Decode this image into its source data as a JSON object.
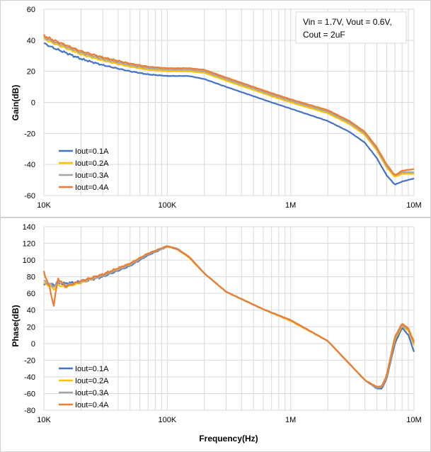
{
  "chart_data": [
    {
      "type": "line",
      "x_scale": "log",
      "ylabel": "Gain(dB)",
      "xlabel": "",
      "xlim": [
        10000,
        10000000
      ],
      "ylim": [
        -60,
        60
      ],
      "y_ticks": [
        60,
        40,
        20,
        0,
        -20,
        -40,
        -60
      ],
      "x_ticks": [
        {
          "value": 10000,
          "label": "10K"
        },
        {
          "value": 100000,
          "label": "100K"
        },
        {
          "value": 1000000,
          "label": "1M"
        },
        {
          "value": 10000000,
          "label": "10M"
        }
      ],
      "grid": true,
      "legend_position": "bottom-left",
      "annotation": {
        "line1": "Vin = 1.7V, Vout = 0.6V,",
        "line2": "Cout = 2uF"
      },
      "x": [
        10000,
        12000,
        15000,
        20000,
        30000,
        50000,
        70000,
        100000,
        150000,
        200000,
        300000,
        500000,
        700000,
        1000000,
        2000000,
        3000000,
        4000000,
        5000000,
        6000000,
        7000000,
        8000000,
        10000000
      ],
      "series": [
        {
          "name": "Iout=0.1A",
          "color": "#4472C4",
          "values": [
            38,
            35,
            32,
            28,
            24,
            20,
            18,
            17,
            17,
            15,
            10,
            4,
            0,
            -4,
            -12,
            -19,
            -26,
            -36,
            -47,
            -53,
            -51,
            -49
          ]
        },
        {
          "name": "Iout=0.2A",
          "color": "#FFC000",
          "values": [
            41,
            38,
            35,
            31,
            27,
            23,
            21,
            20,
            20,
            19,
            14,
            8,
            4,
            0,
            -7,
            -14,
            -21,
            -31,
            -42,
            -48,
            -46,
            -46
          ]
        },
        {
          "name": "Iout=0.3A",
          "color": "#A5A5A5",
          "values": [
            42,
            39,
            36,
            32,
            28,
            24,
            22,
            21,
            21,
            20,
            15,
            9,
            5,
            1,
            -6,
            -13,
            -20,
            -30,
            -41,
            -47,
            -45,
            -45
          ]
        },
        {
          "name": "Iout=0.4A",
          "color": "#ED7D31",
          "values": [
            43,
            40,
            37,
            33,
            29,
            25,
            23,
            22,
            22,
            21,
            16,
            10,
            6,
            2,
            -5,
            -12,
            -19,
            -29,
            -40,
            -47,
            -44,
            -43
          ]
        }
      ]
    },
    {
      "type": "line",
      "x_scale": "log",
      "ylabel": "Phase(dB)",
      "xlabel": "Frequency(Hz)",
      "xlim": [
        10000,
        10000000
      ],
      "ylim": [
        -80,
        140
      ],
      "y_ticks": [
        140,
        120,
        100,
        80,
        60,
        40,
        20,
        0,
        -20,
        -40,
        -60,
        -80
      ],
      "x_ticks": [
        {
          "value": 10000,
          "label": "10K"
        },
        {
          "value": 100000,
          "label": "100K"
        },
        {
          "value": 1000000,
          "label": "1M"
        },
        {
          "value": 10000000,
          "label": "10M"
        }
      ],
      "grid": true,
      "legend_position": "bottom-left",
      "x": [
        10000,
        11000,
        12000,
        13000,
        15000,
        20000,
        30000,
        50000,
        70000,
        100000,
        120000,
        150000,
        200000,
        300000,
        600000,
        1000000,
        2000000,
        4000000,
        5000000,
        5500000,
        6000000,
        7000000,
        8000000,
        9000000,
        10000000
      ],
      "series": [
        {
          "name": "Iout=0.1A",
          "color": "#4472C4",
          "values": [
            70,
            72,
            70,
            72,
            72,
            74,
            80,
            93,
            106,
            116,
            114,
            104,
            84,
            62,
            41,
            28,
            3,
            -44,
            -54,
            -54,
            -42,
            0,
            19,
            10,
            -10
          ]
        },
        {
          "name": "Iout=0.2A",
          "color": "#FFC000",
          "values": [
            72,
            70,
            65,
            70,
            68,
            73,
            82,
            96,
            108,
            116,
            113,
            103,
            84,
            62,
            41,
            27,
            3,
            -44,
            -53,
            -52,
            -40,
            5,
            21,
            15,
            -2
          ]
        },
        {
          "name": "Iout=0.3A",
          "color": "#A5A5A5",
          "values": [
            75,
            72,
            68,
            74,
            70,
            74,
            81,
            94,
            107,
            116,
            114,
            104,
            84,
            62,
            41,
            28,
            3,
            -44,
            -53,
            -52,
            -39,
            7,
            22,
            17,
            0
          ]
        },
        {
          "name": "Iout=0.4A",
          "color": "#ED7D31",
          "values": [
            85,
            70,
            45,
            78,
            68,
            75,
            83,
            96,
            108,
            117,
            113,
            104,
            84,
            62,
            41,
            28,
            3,
            -44,
            -52,
            -51,
            -38,
            8,
            24,
            18,
            2
          ]
        }
      ]
    }
  ]
}
